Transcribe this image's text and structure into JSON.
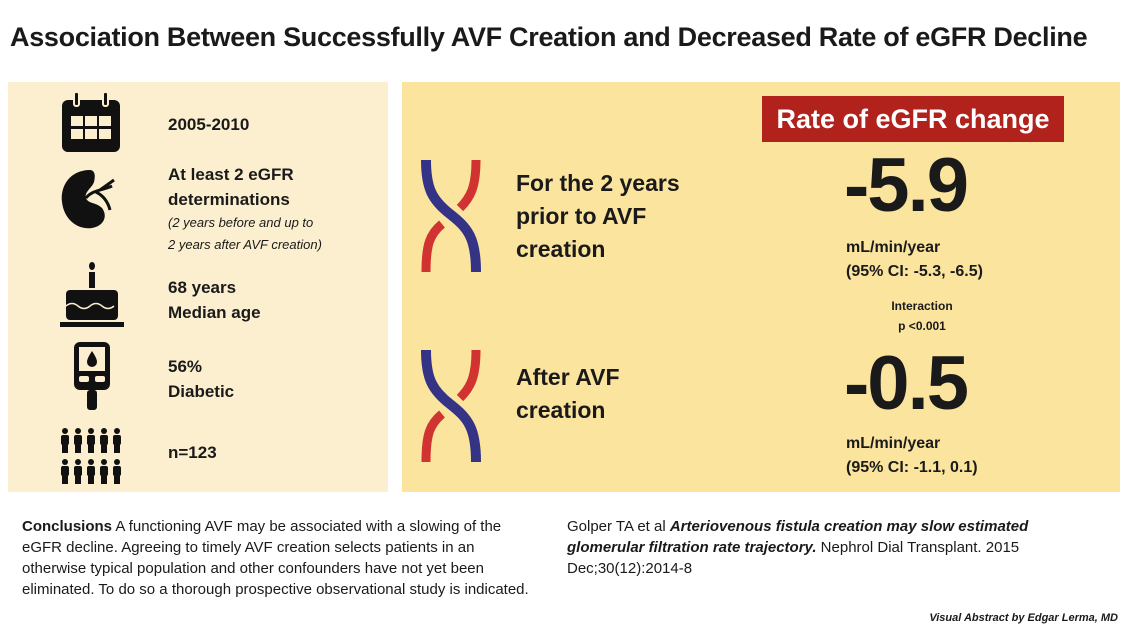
{
  "title": "Association Between Successfully AVF Creation and Decreased Rate of eGFR Decline",
  "colors": {
    "left_panel": "#fcefcf",
    "right_panel": "#fbe49e",
    "badge": "#b0221b",
    "vein": "#353385",
    "artery": "#d13330"
  },
  "stats": [
    {
      "icon": "calendar-icon",
      "line1": "2005-2010"
    },
    {
      "icon": "kidney-icon",
      "line1": "At least 2 eGFR",
      "line2": "determinations",
      "note1": "(2 years before and up to",
      "note2": "2 years after AVF creation)"
    },
    {
      "icon": "birthday-cake-icon",
      "line1": "68 years",
      "line2": "Median age"
    },
    {
      "icon": "glucometer-icon",
      "line1": "56%",
      "line2": "Diabetic"
    },
    {
      "icon": "people-icon",
      "line1": "n=123"
    }
  ],
  "results": {
    "header": "Rate of eGFR change",
    "before": {
      "line1": "For the 2 years",
      "line2": "prior to AVF",
      "line3": "creation",
      "value": "-5.9",
      "unit": "mL/min/year",
      "ci": "(95% CI: -5.3, -6.5)"
    },
    "interaction": {
      "line1": "Interaction",
      "line2": "p <0.001"
    },
    "after": {
      "line1": "After AVF",
      "line2": "creation",
      "value": "-0.5",
      "unit": "mL/min/year",
      "ci": "(95% CI: -1.1, 0.1)"
    }
  },
  "conclusions": {
    "label": "Conclusions",
    "text": " A functioning AVF may be associated with a slowing of the eGFR decline. Agreeing to timely AVF creation selects patients in an otherwise typical population and other confounders have not yet been eliminated. To do so a thorough prospective observational study is indicated."
  },
  "citation": {
    "authors": "Golper TA et al ",
    "article": "Arteriovenous fistula creation may slow estimated glomerular filtration rate trajectory.",
    "journal": " Nephrol Dial Transplant. 2015 Dec;30(12):2014-8"
  },
  "credit": "Visual Abstract by Edgar Lerma, MD"
}
